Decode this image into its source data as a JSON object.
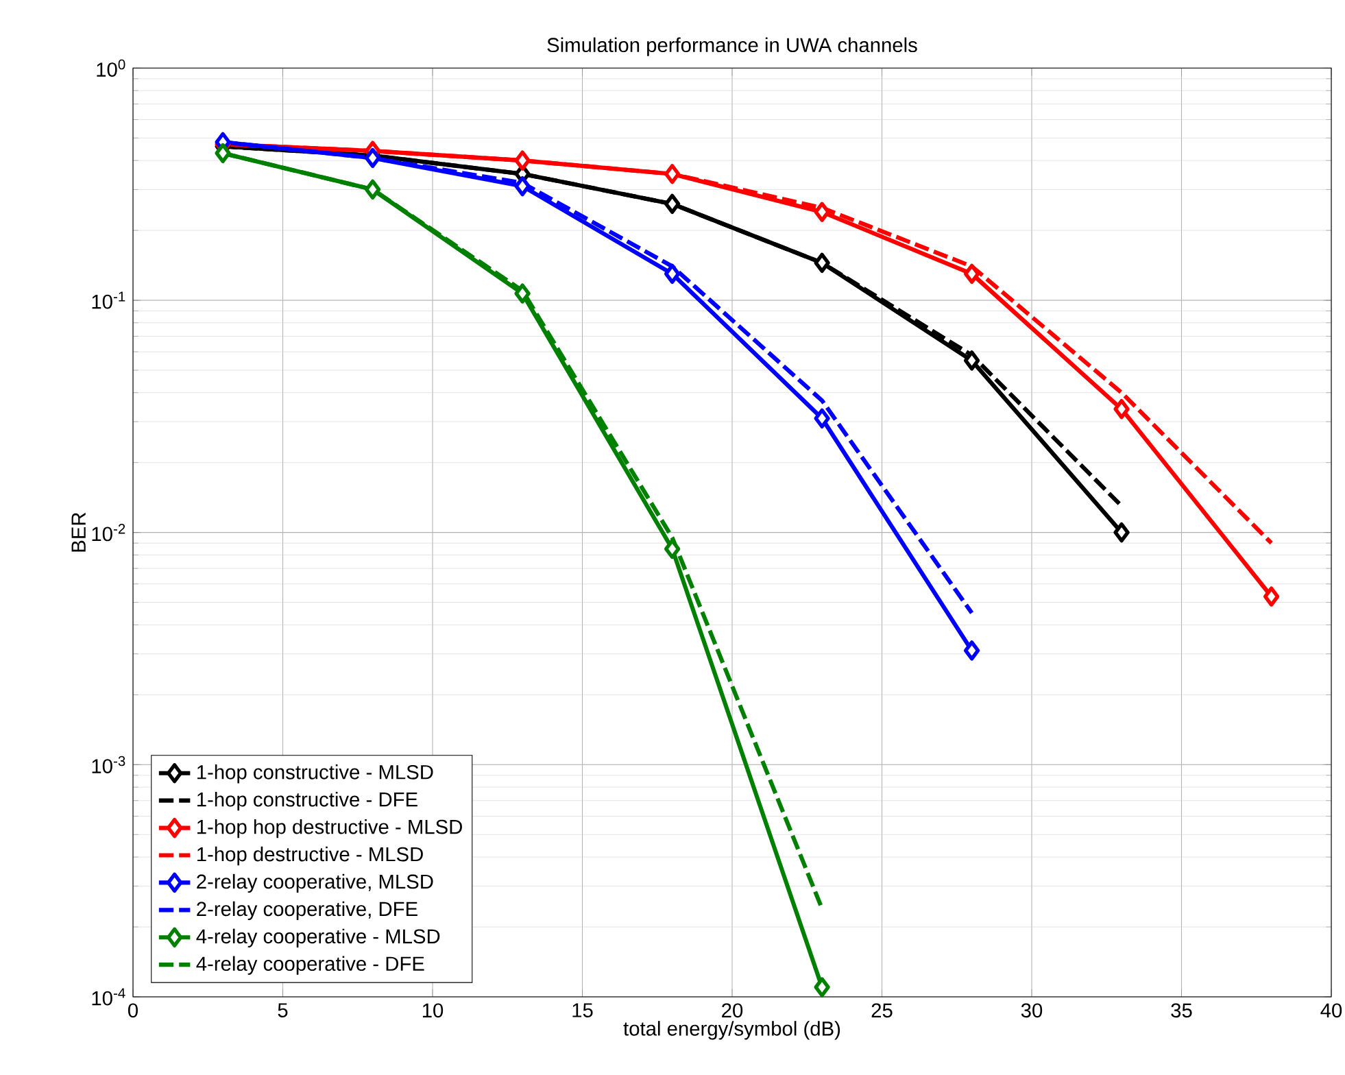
{
  "chart_data": {
    "type": "line",
    "title": "Simulation performance in UWA channels",
    "xlabel": "total energy/symbol (dB)",
    "ylabel": "BER",
    "x": [
      3,
      8,
      13,
      18,
      23,
      28,
      33,
      38
    ],
    "series": [
      {
        "name": "1-hop constructive - MLSD",
        "color": "#000000",
        "marker": "diamond",
        "line_style": "solid",
        "values": [
          0.46,
          0.42,
          0.35,
          0.26,
          0.145,
          0.055,
          0.01,
          null
        ]
      },
      {
        "name": "1-hop constructive - DFE",
        "color": "#000000",
        "marker": "none",
        "line_style": "dashed",
        "values": [
          0.46,
          0.42,
          0.35,
          0.26,
          0.145,
          0.058,
          0.013,
          null
        ]
      },
      {
        "name": "1-hop hop destructive - MLSD",
        "color": "#ff0000",
        "marker": "diamond",
        "line_style": "solid",
        "values": [
          0.47,
          0.44,
          0.4,
          0.35,
          0.24,
          0.13,
          0.034,
          0.0053
        ]
      },
      {
        "name": "1-hop destructive - MLSD",
        "color": "#ff0000",
        "marker": "none",
        "line_style": "dashed",
        "values": [
          0.47,
          0.44,
          0.4,
          0.35,
          0.25,
          0.14,
          0.04,
          0.009
        ]
      },
      {
        "name": "2-relay cooperative, MLSD",
        "color": "#0000ff",
        "marker": "diamond",
        "line_style": "solid",
        "values": [
          0.48,
          0.41,
          0.31,
          0.13,
          0.031,
          0.0031,
          null,
          null
        ]
      },
      {
        "name": "2-relay cooperative, DFE",
        "color": "#0000ff",
        "marker": "none",
        "line_style": "dashed",
        "values": [
          0.48,
          0.41,
          0.32,
          0.14,
          0.037,
          0.0045,
          null,
          null
        ]
      },
      {
        "name": "4-relay cooperative - MLSD",
        "color": "#008000",
        "marker": "diamond",
        "line_style": "solid",
        "values": [
          0.43,
          0.3,
          0.107,
          0.0085,
          0.00011,
          null,
          null,
          null
        ]
      },
      {
        "name": "4-relay cooperative - DFE",
        "color": "#008000",
        "marker": "none",
        "line_style": "dashed",
        "values": [
          0.43,
          0.3,
          0.11,
          0.0095,
          0.00024,
          null,
          null,
          null
        ]
      }
    ],
    "xlim": [
      0,
      40
    ],
    "xticks": [
      0,
      5,
      10,
      15,
      20,
      25,
      30,
      35,
      40
    ],
    "ylim": [
      0.0001,
      1
    ],
    "log": "y",
    "yticks": [
      {
        "value": 0.0001,
        "label": "10$^{-4}$"
      },
      {
        "value": 0.001,
        "label": "10$^{-3}$"
      },
      {
        "value": 0.01,
        "label": "10$^{-2}$"
      },
      {
        "value": 0.1,
        "label": "10$^{-1}$"
      },
      {
        "value": 1,
        "label": "10$^{0}$"
      }
    ],
    "grid": true,
    "legend": "bottom left"
  }
}
